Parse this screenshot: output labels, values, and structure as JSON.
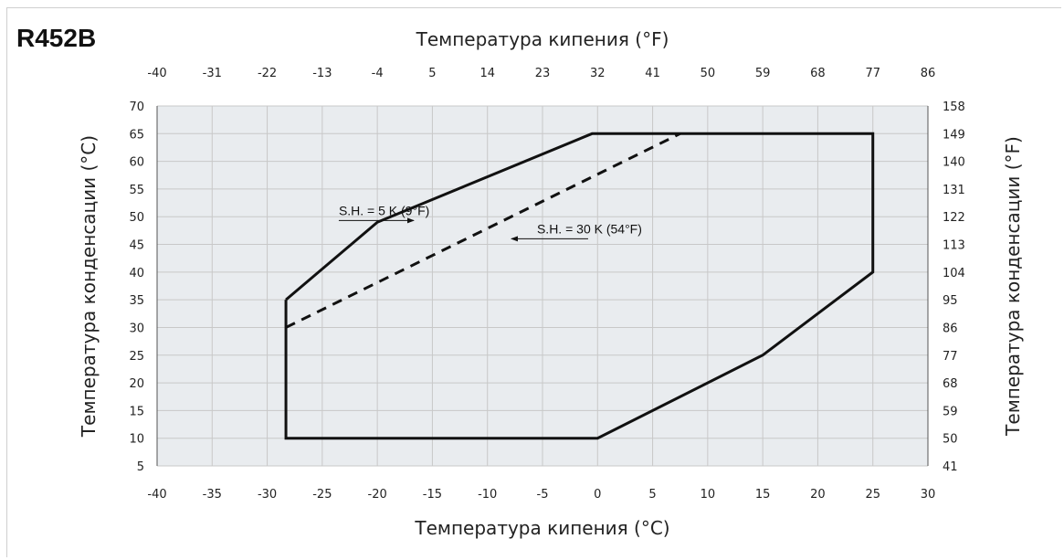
{
  "refrigerant": "R452B",
  "chart_data": {
    "type": "line",
    "title": "",
    "xlabel": "Температура кипения (°C)",
    "xlabel_top": "Температура кипения (°F)",
    "ylabel": "Температура конденсации (°C)",
    "ylabel_right": "Температура конденсации (°F)",
    "xlim": [
      -40,
      30
    ],
    "ylim": [
      5,
      70
    ],
    "grid": true,
    "x_ticks": [
      -40,
      -35,
      -30,
      -25,
      -20,
      -15,
      -10,
      -5,
      0,
      5,
      10,
      15,
      20,
      25,
      30
    ],
    "x_ticks_f": [
      -40,
      -31,
      -22,
      -13,
      -4,
      5,
      14,
      23,
      32,
      41,
      50,
      59,
      68,
      77,
      86
    ],
    "y_ticks": [
      5,
      10,
      15,
      20,
      25,
      30,
      35,
      40,
      45,
      50,
      55,
      60,
      65,
      70
    ],
    "y_ticks_f": [
      41,
      50,
      59,
      68,
      77,
      86,
      95,
      104,
      113,
      122,
      131,
      140,
      149,
      158
    ],
    "series": [
      {
        "name": "S.H. = 5 K (9°F)",
        "style": "solid",
        "x": [
          -28.3,
          -20,
          -0.5,
          25,
          25,
          15,
          0,
          -28.3,
          -28.3
        ],
        "y": [
          35,
          49,
          65,
          65,
          40,
          25,
          10,
          10,
          35
        ]
      },
      {
        "name": "S.H. = 30 K (54°F)",
        "style": "dashed",
        "x": [
          -28.3,
          7.5
        ],
        "y": [
          30,
          65
        ]
      }
    ],
    "annotations": [
      {
        "text": "S.H. = 5 K (9°F)",
        "x": -23.5,
        "y": 50.3
      },
      {
        "text": "S.H. = 30 K (54°F)",
        "x": -5.5,
        "y": 47
      }
    ],
    "colors": {
      "plot_bg": "#e9ecef",
      "grid": "#c8c8c8",
      "line": "#111111"
    }
  }
}
